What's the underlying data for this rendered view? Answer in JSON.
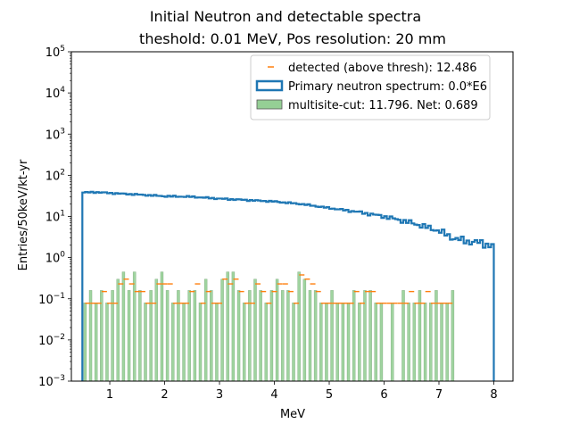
{
  "chart_data": {
    "type": "bar",
    "title_line1": "Initial Neutron and detectable spectra",
    "title_line2": "theshold: 0.01 MeV, Pos resolution: 20 mm",
    "xlabel": "MeV",
    "ylabel": "Entries/50keV/kt-yr",
    "xlim": [
      0.3,
      8.35
    ],
    "ylim": [
      0.001,
      100000
    ],
    "yscale": "log",
    "xticks": [
      "1",
      "2",
      "3",
      "4",
      "5",
      "6",
      "7",
      "8"
    ],
    "yticks": [
      {
        "base": "10",
        "exp": "−3"
      },
      {
        "base": "10",
        "exp": "−2"
      },
      {
        "base": "10",
        "exp": "−1"
      },
      {
        "base": "10",
        "exp": "0"
      },
      {
        "base": "10",
        "exp": "1"
      },
      {
        "base": "10",
        "exp": "2"
      },
      {
        "base": "10",
        "exp": "3"
      },
      {
        "base": "10",
        "exp": "4"
      },
      {
        "base": "10",
        "exp": "5"
      }
    ],
    "legend_position": "top-right",
    "legend": [
      {
        "label": "detected (above thresh): 12.486",
        "style": "marker"
      },
      {
        "label": "Primary neutron spectrum: 0.0*E6",
        "style": "step"
      },
      {
        "label": "multisite-cut: 11.796. Net: 0.689",
        "style": "patch"
      }
    ],
    "colors": {
      "primary": "#1f77b4",
      "detected": "#ff7f0e",
      "multisite": "#2ca02c"
    },
    "primary_spectrum": {
      "x_start": 0.5,
      "x_end": 8.0,
      "bin_width": 0.05,
      "anchors": [
        [
          0.5,
          38
        ],
        [
          0.75,
          39
        ],
        [
          1.0,
          37
        ],
        [
          1.5,
          34
        ],
        [
          2.0,
          31
        ],
        [
          2.5,
          30
        ],
        [
          3.0,
          27
        ],
        [
          3.5,
          25
        ],
        [
          4.0,
          23
        ],
        [
          4.5,
          20
        ],
        [
          5.0,
          16
        ],
        [
          5.5,
          13
        ],
        [
          6.0,
          10
        ],
        [
          6.5,
          7
        ],
        [
          7.0,
          4.5
        ],
        [
          7.25,
          3
        ],
        [
          7.5,
          2.5
        ],
        [
          7.75,
          2.3
        ],
        [
          8.0,
          1.9
        ]
      ]
    },
    "detected": {
      "x": [
        0.6,
        0.7,
        0.8,
        0.9,
        1.0,
        1.1,
        1.2,
        1.3,
        1.4,
        1.5,
        1.6,
        1.7,
        1.8,
        1.9,
        2.0,
        2.1,
        2.2,
        2.3,
        2.4,
        2.5,
        2.6,
        2.7,
        2.8,
        2.9,
        3.0,
        3.1,
        3.2,
        3.3,
        3.4,
        3.5,
        3.6,
        3.7,
        3.8,
        3.9,
        4.0,
        4.1,
        4.2,
        4.3,
        4.4,
        4.5,
        4.6,
        4.7,
        4.8,
        4.9,
        5.0,
        5.1,
        5.2,
        5.3,
        5.4,
        5.5,
        5.6,
        5.7,
        5.8,
        5.9,
        6.0,
        6.1,
        6.2,
        6.3,
        6.4,
        6.5,
        6.6,
        6.7,
        6.8,
        6.9,
        7.0,
        7.1,
        7.2
      ],
      "values": [
        0.078,
        0.078,
        0.078,
        0.15,
        0.078,
        0.078,
        0.23,
        0.3,
        0.23,
        0.15,
        0.15,
        0.078,
        0.078,
        0.23,
        0.23,
        0.23,
        0.078,
        0.078,
        0.078,
        0.15,
        0.23,
        0.078,
        0.15,
        0.078,
        0.078,
        0.3,
        0.23,
        0.3,
        0.15,
        0.078,
        0.078,
        0.23,
        0.15,
        0.078,
        0.15,
        0.23,
        0.23,
        0.15,
        0.078,
        0.38,
        0.3,
        0.23,
        0.15,
        0.078,
        0.078,
        0.078,
        0.078,
        0.078,
        0.078,
        0.15,
        0.078,
        0.15,
        0.15,
        0.078,
        0.078,
        0.078,
        0.078,
        0.078,
        0.078,
        0.15,
        0.078,
        0.078,
        0.15,
        0.078,
        0.078,
        0.078,
        0.078
      ]
    },
    "multisite_bars": {
      "x": [
        0.55,
        0.65,
        0.75,
        0.85,
        0.95,
        1.05,
        1.15,
        1.25,
        1.35,
        1.45,
        1.55,
        1.65,
        1.75,
        1.85,
        1.95,
        2.05,
        2.15,
        2.25,
        2.35,
        2.45,
        2.55,
        2.65,
        2.75,
        2.85,
        2.95,
        3.05,
        3.15,
        3.25,
        3.35,
        3.45,
        3.55,
        3.65,
        3.75,
        3.85,
        3.95,
        4.05,
        4.15,
        4.25,
        4.35,
        4.45,
        4.55,
        4.65,
        4.75,
        4.85,
        4.95,
        5.05,
        5.15,
        5.25,
        5.35,
        5.45,
        5.55,
        5.65,
        5.75,
        5.85,
        5.95,
        6.15,
        6.35,
        6.45,
        6.55,
        6.65,
        6.75,
        6.85,
        6.95,
        7.05,
        7.15,
        7.25
      ],
      "values": [
        0.08,
        0.16,
        0.08,
        0.16,
        0.08,
        0.16,
        0.3,
        0.45,
        0.16,
        0.45,
        0.16,
        0.08,
        0.16,
        0.3,
        0.45,
        0.16,
        0.08,
        0.16,
        0.08,
        0.16,
        0.16,
        0.08,
        0.3,
        0.16,
        0.08,
        0.3,
        0.45,
        0.45,
        0.16,
        0.08,
        0.16,
        0.3,
        0.16,
        0.08,
        0.16,
        0.3,
        0.16,
        0.16,
        0.08,
        0.45,
        0.3,
        0.16,
        0.16,
        0.08,
        0.08,
        0.16,
        0.08,
        0.08,
        0.08,
        0.16,
        0.08,
        0.16,
        0.16,
        0.08,
        0.08,
        0.08,
        0.16,
        0.08,
        0.08,
        0.16,
        0.08,
        0.08,
        0.16,
        0.08,
        0.08,
        0.16
      ]
    }
  }
}
